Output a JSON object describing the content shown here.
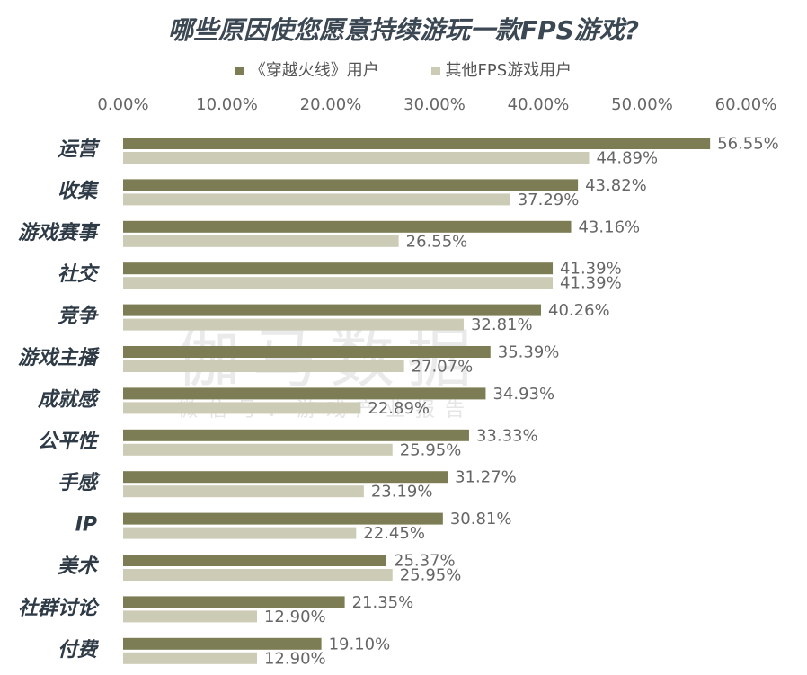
{
  "colors": {
    "primary": "#7d7d55",
    "secondary": "#cccbb5"
  },
  "watermark": {
    "main": "伽马数据",
    "sub": "微信号：游戏产业报告"
  },
  "chart_data": {
    "type": "bar",
    "orientation": "horizontal",
    "title": "哪些原因使您愿意持续游玩一款FPS游戏?",
    "categories": [
      "运营",
      "收集",
      "游戏赛事",
      "社交",
      "竞争",
      "游戏主播",
      "成就感",
      "公平性",
      "手感",
      "IP",
      "美术",
      "社群讨论",
      "付费"
    ],
    "series": [
      {
        "name": "《穿越火线》用户",
        "values": [
          56.55,
          43.82,
          43.16,
          41.39,
          40.26,
          35.39,
          34.93,
          33.33,
          31.27,
          30.81,
          25.37,
          21.35,
          19.1
        ]
      },
      {
        "name": "其他FPS游戏用户",
        "values": [
          44.89,
          37.29,
          26.55,
          41.39,
          32.81,
          27.07,
          22.89,
          25.95,
          23.19,
          22.45,
          25.95,
          12.9,
          12.9
        ]
      }
    ],
    "xlim": [
      0,
      60
    ],
    "ticks": [
      0,
      10,
      20,
      30,
      40,
      50,
      60
    ],
    "tick_labels": [
      "0.00%",
      "10.00%",
      "20.00%",
      "30.00%",
      "40.00%",
      "50.00%",
      "60.00%"
    ],
    "value_labels": [
      [
        "56.55%",
        "43.82%",
        "43.16%",
        "41.39%",
        "40.26%",
        "35.39%",
        "34.93%",
        "33.33%",
        "31.27%",
        "30.81%",
        "25.37%",
        "21.35%",
        "19.10%"
      ],
      [
        "44.89%",
        "37.29%",
        "26.55%",
        "41.39%",
        "32.81%",
        "27.07%",
        "22.89%",
        "25.95%",
        "23.19%",
        "22.45%",
        "25.95%",
        "12.90%",
        "12.90%"
      ]
    ],
    "legend_position": "top",
    "grid": false
  }
}
